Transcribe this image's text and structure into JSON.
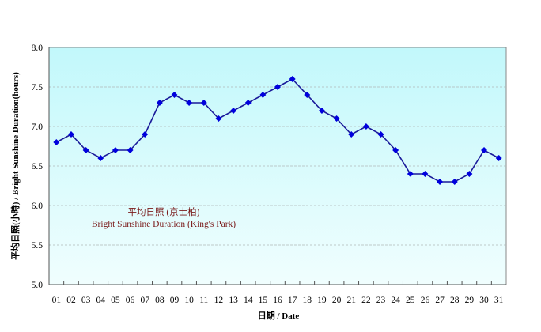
{
  "chart_data": {
    "type": "line",
    "title": "",
    "xlabel": "日期 / Date",
    "ylabel": "平均日照(小時) / Bright Sunshine Duration(hours)",
    "ylim": [
      5.0,
      8.0
    ],
    "yticks": [
      "5.0",
      "5.5",
      "6.0",
      "6.5",
      "7.0",
      "7.5",
      "8.0"
    ],
    "grid": true,
    "legend": "none",
    "categories": [
      "01",
      "02",
      "03",
      "04",
      "05",
      "06",
      "07",
      "08",
      "09",
      "10",
      "11",
      "12",
      "13",
      "14",
      "15",
      "16",
      "17",
      "18",
      "19",
      "20",
      "21",
      "22",
      "23",
      "24",
      "25",
      "26",
      "27",
      "28",
      "29",
      "30",
      "31"
    ],
    "series": [
      {
        "name": "Bright Sunshine Duration (King's Park)",
        "color": "#0000cc",
        "values": [
          6.8,
          6.9,
          6.7,
          6.6,
          6.7,
          6.7,
          6.9,
          7.3,
          7.4,
          7.3,
          7.3,
          7.1,
          7.2,
          7.3,
          7.4,
          7.5,
          7.6,
          7.4,
          7.2,
          7.1,
          6.9,
          7.0,
          6.9,
          6.7,
          6.4,
          6.4,
          6.3,
          6.3,
          6.4,
          6.7,
          6.6
        ]
      }
    ],
    "annotation": {
      "line1": "平均日照 (京士柏)",
      "line2": "Bright Sunshine Duration (King's Park)"
    },
    "colors": {
      "plot_top": "#c2f8fb",
      "plot_bottom": "#f0fefe",
      "line": "#1a1a9a",
      "marker": "#0000dd",
      "grid": "#b0b8b8",
      "annotation": "#7a1a1a"
    }
  }
}
